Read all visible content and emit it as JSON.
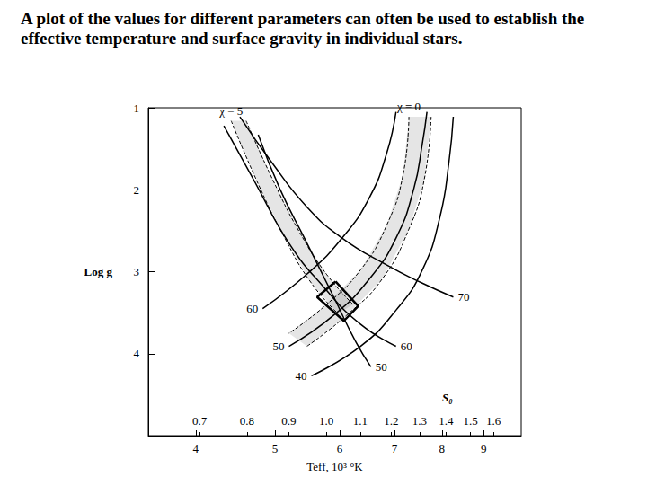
{
  "chart_data": {
    "type": "line",
    "title": "A plot of the values for different parameters can often be used to establish the effective temperature and surface gravity in individual stars.",
    "xlabel": "Teff, 10³ °K",
    "ylabel": "Log g",
    "log": "x",
    "grid": false,
    "xlim": [
      3.5,
      10
    ],
    "xticks": [
      4,
      5,
      6,
      7,
      8,
      9
    ],
    "ylim": [
      1,
      5
    ],
    "yticks": [
      1,
      2,
      3,
      4
    ],
    "x2label": "S₀",
    "x2lim": [
      0.606,
      1.73
    ],
    "x2ticks": [
      0.7,
      0.8,
      0.9,
      {
        "value": 1,
        "label": "1.0"
      },
      1.1,
      1.2,
      1.3,
      1.4,
      1.5,
      1.6
    ],
    "series": [
      {
        "name": "χ = 5",
        "type": "band",
        "line_style": "dashed",
        "color": "#000000",
        "edges": [
          {
            "x": [
              4.42,
              4.77,
              5.14,
              5.54,
              5.97
            ],
            "values": [
              1.16,
              1.93,
              2.59,
              3.14,
              3.51
            ]
          },
          {
            "x": [
              4.61,
              4.97,
              5.36,
              5.78,
              6.23
            ],
            "values": [
              1.16,
              1.88,
              2.52,
              3.03,
              3.4
            ]
          }
        ]
      },
      {
        "name": "χ = 0",
        "type": "band",
        "line_style": "dashed",
        "color": "#000000",
        "edges": [
          {
            "x": [
              7.29,
              7.17,
              6.85,
              6.36,
              5.75,
              5.2
            ],
            "values": [
              1.11,
              1.82,
              2.43,
              2.98,
              3.42,
              3.75
            ]
          },
          {
            "x": [
              7.76,
              7.61,
              7.29,
              6.76,
              6.12,
              5.47
            ],
            "values": [
              1.11,
              1.88,
              2.48,
              3.09,
              3.53,
              3.91
            ]
          }
        ]
      },
      {
        "name": "60",
        "type": "line",
        "line_style": "solid",
        "color": "#000000",
        "x": [
          7.03,
          6.85,
          6.52,
          6.04,
          5.47,
          4.83
        ],
        "values": [
          1.05,
          1.55,
          2.1,
          2.59,
          3.03,
          3.45
        ]
      },
      {
        "name": "50",
        "type": "line",
        "line_style": "solid",
        "color": "#000000",
        "x": [
          7.67,
          7.57,
          7.39,
          7.03,
          6.52,
          5.9,
          5.2
        ],
        "values": [
          1.05,
          1.44,
          1.99,
          2.59,
          3.09,
          3.53,
          3.91
        ]
      },
      {
        "name": "40",
        "type": "line",
        "line_style": "solid",
        "color": "#000000",
        "x": [
          8.26,
          8.16,
          7.96,
          7.57,
          7.03,
          6.36,
          5.54
        ],
        "values": [
          1.11,
          1.66,
          2.32,
          2.98,
          3.47,
          3.91,
          4.27
        ]
      },
      {
        "name": "70",
        "type": "line",
        "line_style": "solid",
        "color": "#000000",
        "x": [
          4.53,
          4.95,
          5.47,
          6.04,
          6.85,
          7.57,
          8.26
        ],
        "values": [
          1.11,
          1.66,
          2.21,
          2.59,
          2.92,
          3.14,
          3.31
        ]
      },
      {
        "name": "60",
        "type": "line",
        "line_style": "solid",
        "color": "#000000",
        "x": [
          4.33,
          4.71,
          5.2,
          5.75,
          6.36,
          7.03
        ],
        "values": [
          1.22,
          1.88,
          2.65,
          3.2,
          3.64,
          3.91
        ]
      },
      {
        "name": "50",
        "type": "line",
        "line_style": "solid",
        "color": "#000000",
        "x": [
          4.77,
          5.07,
          5.47,
          5.9,
          6.28,
          6.55
        ],
        "values": [
          1.33,
          1.99,
          2.65,
          3.31,
          3.86,
          4.16
        ]
      },
      {
        "type": "polygon",
        "line_style": "solid",
        "color": "#000000",
        "x": [
          5.93,
          6.32,
          6.07,
          5.63,
          5.93
        ],
        "values": [
          3.12,
          3.42,
          3.6,
          3.31,
          3.12
        ]
      }
    ]
  }
}
